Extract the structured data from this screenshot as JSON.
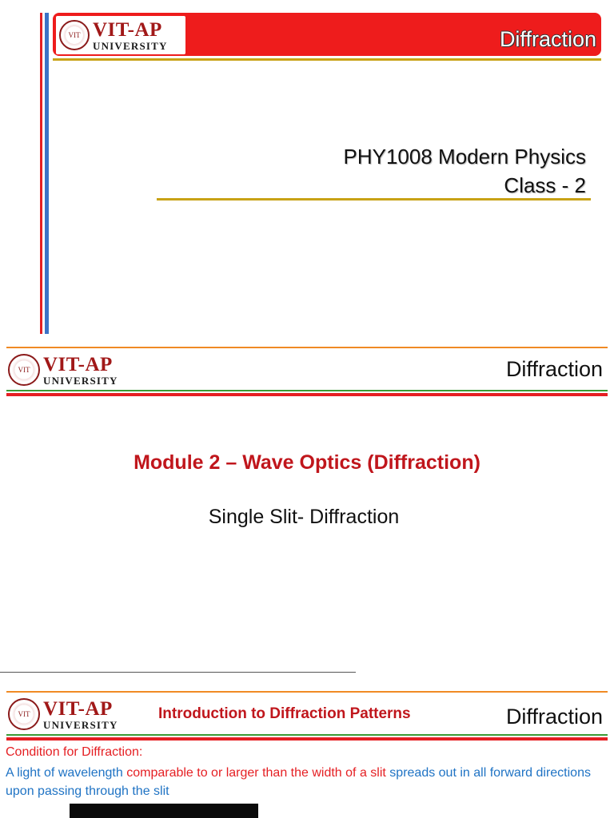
{
  "slide1": {
    "logo": {
      "main": "VIT-AP",
      "sub": "UNIVERSITY",
      "seal_text": "VIT"
    },
    "title": "Diffraction",
    "course_line1": "PHY1008 Modern Physics",
    "course_line2": "Class - 2",
    "colors": {
      "header": "#ee1c1c",
      "accent_gold": "#c8a216",
      "bar_blue": "#3b73c6"
    }
  },
  "slide2": {
    "logo": {
      "main": "VIT-AP",
      "sub": "UNIVERSITY",
      "seal_text": "VIT"
    },
    "title": "Diffraction",
    "module": "Module 2 – Wave Optics (Diffraction)",
    "subtitle": "Single Slit- Diffraction"
  },
  "slide3": {
    "logo": {
      "main": "VIT-AP",
      "sub": "UNIVERSITY",
      "seal_text": "VIT"
    },
    "intro": "Introduction to Diffraction Patterns",
    "title": "Diffraction",
    "condition_heading": "Condition for Diffraction:",
    "body_part1": "A light of wavelength ",
    "body_part2": "comparable to or larger than the width of a slit",
    "body_part3": " spreads out in all forward directions upon passing through the slit"
  }
}
